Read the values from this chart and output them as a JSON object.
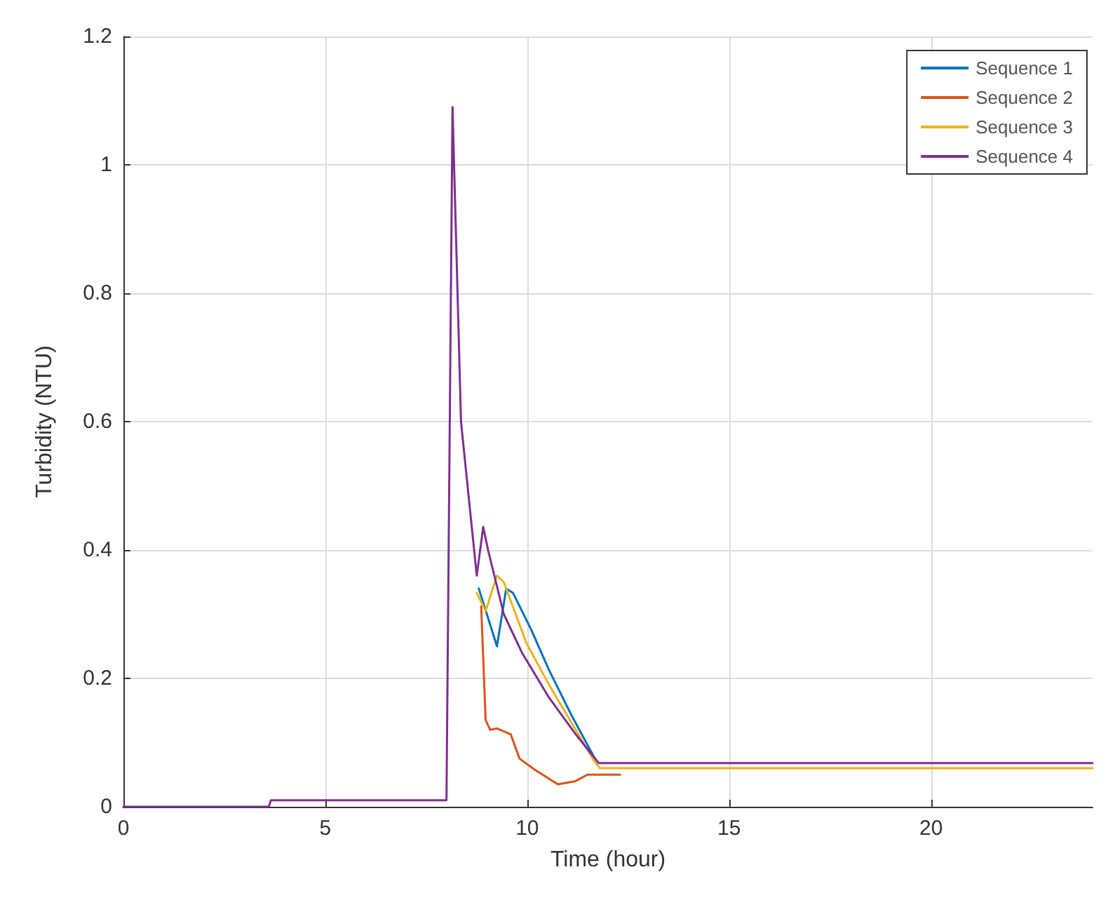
{
  "chart_data": {
    "type": "line",
    "xlabel": "Time (hour)",
    "ylabel": "Turbidity (NTU)",
    "xlim": [
      0,
      24
    ],
    "xticks": [
      0,
      5,
      10,
      15,
      20
    ],
    "ylim": [
      0,
      1.2
    ],
    "yticks": [
      0,
      0.2,
      0.4,
      0.6,
      0.8,
      1,
      1.2
    ],
    "grid": true,
    "legend": "top right",
    "marker": "none",
    "line_style": "solid",
    "series": [
      {
        "name": "Sequence 1",
        "color": "#0072bd",
        "x": [
          8.8,
          9.25,
          9.48,
          9.65,
          10.09,
          10.54,
          11.1,
          11.65
        ],
        "values": [
          0.34,
          0.25,
          0.34,
          0.333,
          0.277,
          0.213,
          0.142,
          0.078
        ]
      },
      {
        "name": "Sequence 2",
        "color": "#d95319",
        "x": [
          8.86,
          8.97,
          9.08,
          9.25,
          9.59,
          9.81,
          10.2,
          10.76,
          11.2,
          11.49,
          12.3
        ],
        "values": [
          0.312,
          0.135,
          0.12,
          0.122,
          0.113,
          0.075,
          0.057,
          0.035,
          0.04,
          0.05,
          0.05
        ]
      },
      {
        "name": "Sequence 3",
        "color": "#edb120",
        "x": [
          8.75,
          8.97,
          9.25,
          9.42,
          9.98,
          10.54,
          11.65,
          11.8,
          24
        ],
        "values": [
          0.333,
          0.305,
          0.36,
          0.35,
          0.255,
          0.19,
          0.072,
          0.06,
          0.06
        ]
      },
      {
        "name": "Sequence 4",
        "color": "#7e2f8e",
        "x": [
          0,
          3.6,
          3.65,
          8.0,
          8.15,
          8.36,
          8.75,
          8.91,
          9.03,
          9.42,
          9.87,
          10.54,
          11.2,
          11.77,
          24
        ],
        "values": [
          0,
          0,
          0.01,
          0.01,
          1.09,
          0.6,
          0.36,
          0.436,
          0.4,
          0.3,
          0.24,
          0.17,
          0.113,
          0.068,
          0.068
        ]
      }
    ]
  }
}
